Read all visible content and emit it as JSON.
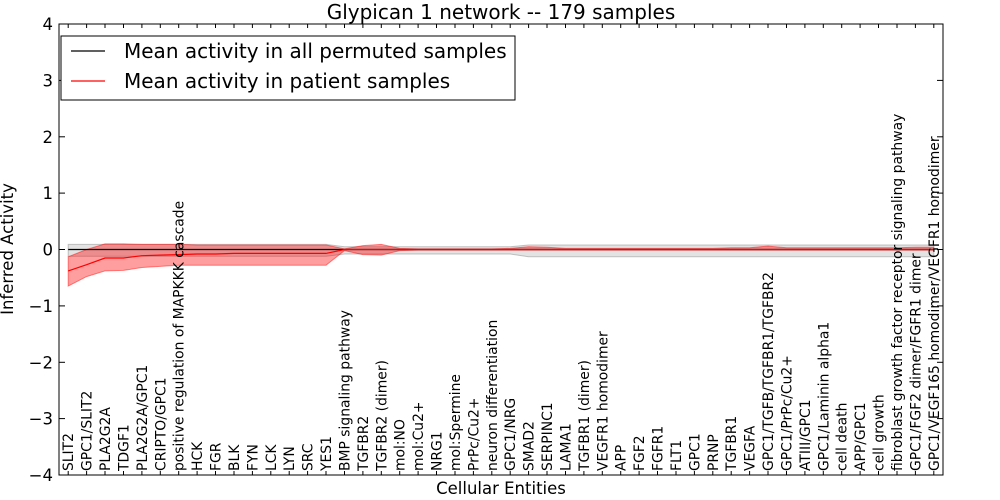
{
  "chart_data": {
    "type": "line",
    "title": "Glypican 1 network -- 179 samples",
    "xlabel": "Cellular Entities",
    "ylabel": "Inferred Activity",
    "ylim": [
      -4,
      4
    ],
    "yticks": [
      -4,
      -3,
      -2,
      -1,
      0,
      1,
      2,
      3,
      4
    ],
    "ytick_labels": [
      "−4",
      "−3",
      "−2",
      "−1",
      "0",
      "1",
      "2",
      "3",
      "4"
    ],
    "grid": false,
    "legend": "upper left",
    "categories": [
      "SLIT2",
      "GPC1/SLIT2",
      "PLA2G2A",
      "TDGF1",
      "PLA2G2A/GPC1",
      "CRIPTO/GPC1",
      "positive regulation of MAPKKK cascade",
      "HCK",
      "FGR",
      "BLK",
      "FYN",
      "LCK",
      "LYN",
      "SRC",
      "YES1",
      "BMP signaling pathway",
      "TGFBR2",
      "TGFBR2 (dimer)",
      "mol:NO",
      "mol:Cu2+",
      "NRG1",
      "mol:Spermine",
      "PrPc/Cu2+",
      "neuron differentiation",
      "GPC1/NRG",
      "SMAD2",
      "SERPINC1",
      "LAMA1",
      "TGFBR1 (dimer)",
      "VEGFR1 homodimer",
      "APP",
      "FGF2",
      "FGFR1",
      "FLT1",
      "GPC1",
      "PRNP",
      "TGFBR1",
      "VEGFA",
      "GPC1/TGFB/TGFBR1/TGFBR2",
      "GPC1/PrPc/Cu2+",
      "ATIII/GPC1",
      "GPC1/Laminin alpha1",
      "cell death",
      "APP/GPC1",
      "cell growth",
      "fibroblast growth factor receptor signaling pathway",
      "GPC1/FGF2 dimer/FGFR1 dimer",
      "GPC1/VEGF165 homodimer/VEGFR1 homodimer"
    ],
    "series": [
      {
        "name": "Mean activity in all permuted samples",
        "color": "#000000",
        "band_color": "#808080",
        "values": [
          0,
          0,
          0,
          0,
          0,
          0,
          0,
          0,
          0,
          0,
          0,
          0,
          0,
          0,
          0,
          0,
          0,
          0,
          0,
          0,
          0,
          0,
          0,
          0,
          0,
          0,
          0,
          0,
          0,
          0,
          0,
          0,
          0,
          0,
          0,
          0,
          0,
          0,
          0,
          0,
          0,
          0,
          0,
          0,
          0,
          0,
          0,
          0
        ],
        "lower": [
          -0.12,
          -0.12,
          -0.12,
          -0.12,
          -0.12,
          -0.12,
          -0.12,
          -0.12,
          -0.12,
          -0.12,
          -0.12,
          -0.12,
          -0.12,
          -0.12,
          -0.12,
          -0.08,
          -0.08,
          -0.08,
          -0.08,
          -0.08,
          -0.08,
          -0.08,
          -0.08,
          -0.08,
          -0.08,
          -0.13,
          -0.13,
          -0.13,
          -0.13,
          -0.13,
          -0.13,
          -0.13,
          -0.13,
          -0.13,
          -0.13,
          -0.13,
          -0.13,
          -0.13,
          -0.13,
          -0.13,
          -0.13,
          -0.13,
          -0.13,
          -0.13,
          -0.13,
          -0.13,
          -0.13,
          -0.13
        ],
        "upper": [
          0.09,
          0.09,
          0.09,
          0.09,
          0.09,
          0.09,
          0.09,
          0.09,
          0.09,
          0.09,
          0.09,
          0.09,
          0.09,
          0.09,
          0.09,
          0.05,
          0.05,
          0.05,
          0.05,
          0.05,
          0.05,
          0.05,
          0.05,
          0.05,
          0.05,
          0.08,
          0.08,
          0.08,
          0.08,
          0.08,
          0.08,
          0.08,
          0.08,
          0.08,
          0.08,
          0.08,
          0.08,
          0.08,
          0.08,
          0.08,
          0.08,
          0.08,
          0.08,
          0.08,
          0.08,
          0.08,
          0.08,
          0.08
        ]
      },
      {
        "name": "Mean activity in patient samples",
        "color": "#ff0000",
        "band_color": "#ff0000",
        "values": [
          -0.38,
          -0.27,
          -0.15,
          -0.15,
          -0.11,
          -0.1,
          -0.09,
          -0.08,
          -0.08,
          -0.07,
          -0.07,
          -0.07,
          -0.07,
          -0.07,
          -0.07,
          0,
          0,
          0,
          0,
          0,
          0,
          0,
          0,
          0,
          0,
          0,
          0,
          0,
          0,
          0,
          0,
          0,
          0,
          0,
          0,
          0,
          0,
          0,
          0,
          0,
          0,
          0,
          0,
          0,
          0,
          0,
          0,
          0
        ],
        "lower": [
          -0.65,
          -0.48,
          -0.38,
          -0.37,
          -0.32,
          -0.3,
          -0.28,
          -0.28,
          -0.28,
          -0.28,
          -0.28,
          -0.28,
          -0.28,
          -0.28,
          -0.28,
          -0.02,
          -0.09,
          -0.1,
          -0.02,
          -0.01,
          -0.01,
          -0.01,
          -0.01,
          -0.01,
          -0.01,
          -0.01,
          -0.01,
          -0.01,
          -0.01,
          -0.01,
          -0.01,
          -0.01,
          -0.01,
          -0.01,
          -0.01,
          -0.01,
          -0.01,
          -0.01,
          -0.01,
          -0.01,
          -0.01,
          -0.01,
          -0.01,
          -0.01,
          -0.01,
          -0.01,
          -0.01,
          -0.01
        ],
        "upper": [
          -0.13,
          0,
          0.1,
          0.1,
          0.09,
          0.09,
          0.09,
          0.08,
          0.08,
          0.08,
          0.08,
          0.08,
          0.08,
          0.08,
          0.08,
          0.01,
          0.07,
          0.09,
          0.02,
          0.01,
          0.01,
          0.01,
          0.01,
          0.01,
          0.02,
          0.05,
          0.04,
          0.02,
          0.02,
          0.02,
          0.02,
          0.02,
          0.02,
          0.02,
          0.02,
          0.02,
          0.03,
          0.03,
          0.06,
          0.03,
          0.03,
          0.03,
          0.03,
          0.03,
          0.03,
          0.03,
          0.04,
          0.04
        ]
      }
    ]
  }
}
